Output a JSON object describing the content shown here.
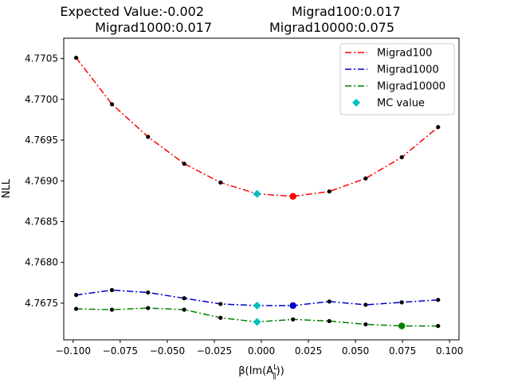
{
  "chart_data": {
    "type": "line",
    "title_line1_left": "Expected Value:-0.002",
    "title_line1_right": "Migrad100:0.017",
    "title_line2_left": "Migrad1000:0.017",
    "title_line2_right": "Migrad10000:0.075",
    "xlabel_prefix": "β(Im(A",
    "xlabel_sup": "L",
    "xlabel_sub": "∥",
    "xlabel_suffix": "))",
    "ylabel": "NLL",
    "xlim": [
      -0.105,
      0.105
    ],
    "ylim": [
      4.76705,
      4.77075
    ],
    "xticks": [
      -0.1,
      -0.075,
      -0.05,
      -0.025,
      0.0,
      0.025,
      0.05,
      0.075,
      0.1
    ],
    "xtick_labels": [
      "−0.100",
      "−0.075",
      "−0.050",
      "−0.025",
      "0.000",
      "0.025",
      "0.050",
      "0.075",
      "0.100"
    ],
    "yticks": [
      4.7675,
      4.768,
      4.7685,
      4.769,
      4.7695,
      4.77,
      4.7705
    ],
    "ytick_labels": [
      "4.7675",
      "4.7680",
      "4.7685",
      "4.7690",
      "4.7695",
      "4.7700",
      "4.7705"
    ],
    "x": [
      -0.0984,
      -0.0794,
      -0.0602,
      -0.041,
      -0.0217,
      -0.0023,
      0.0168,
      0.0361,
      0.0554,
      0.0746,
      0.0939
    ],
    "series": [
      {
        "name": "Migrad100",
        "color": "#ff0000",
        "values": [
          4.77051,
          4.76994,
          4.76954,
          4.76921,
          4.76898,
          4.76884,
          4.76881,
          4.76887,
          4.76903,
          4.76929,
          4.76966
        ],
        "min_x": 0.0168,
        "min_y": 4.76881
      },
      {
        "name": "Migrad1000",
        "color": "#0000cc",
        "values": [
          4.7676,
          4.76766,
          4.76763,
          4.76756,
          4.76749,
          4.76747,
          4.76747,
          4.76752,
          4.76748,
          4.76751,
          4.76754
        ],
        "min_x": 0.0168,
        "min_y": 4.76747
      },
      {
        "name": "Migrad10000",
        "color": "#008000",
        "values": [
          4.76743,
          4.76742,
          4.76744,
          4.76742,
          4.76732,
          4.76727,
          4.7673,
          4.76728,
          4.76724,
          4.76722,
          4.76722
        ],
        "min_x": 0.0746,
        "min_y": 4.76722
      }
    ],
    "mc_value": {
      "name": "MC value",
      "color": "#00bfbf",
      "points": [
        {
          "x": -0.0023,
          "y": 4.76884
        },
        {
          "x": -0.0023,
          "y": 4.76747
        },
        {
          "x": -0.0023,
          "y": 4.76727
        }
      ]
    },
    "legend_position": "top-right",
    "grid": false
  }
}
